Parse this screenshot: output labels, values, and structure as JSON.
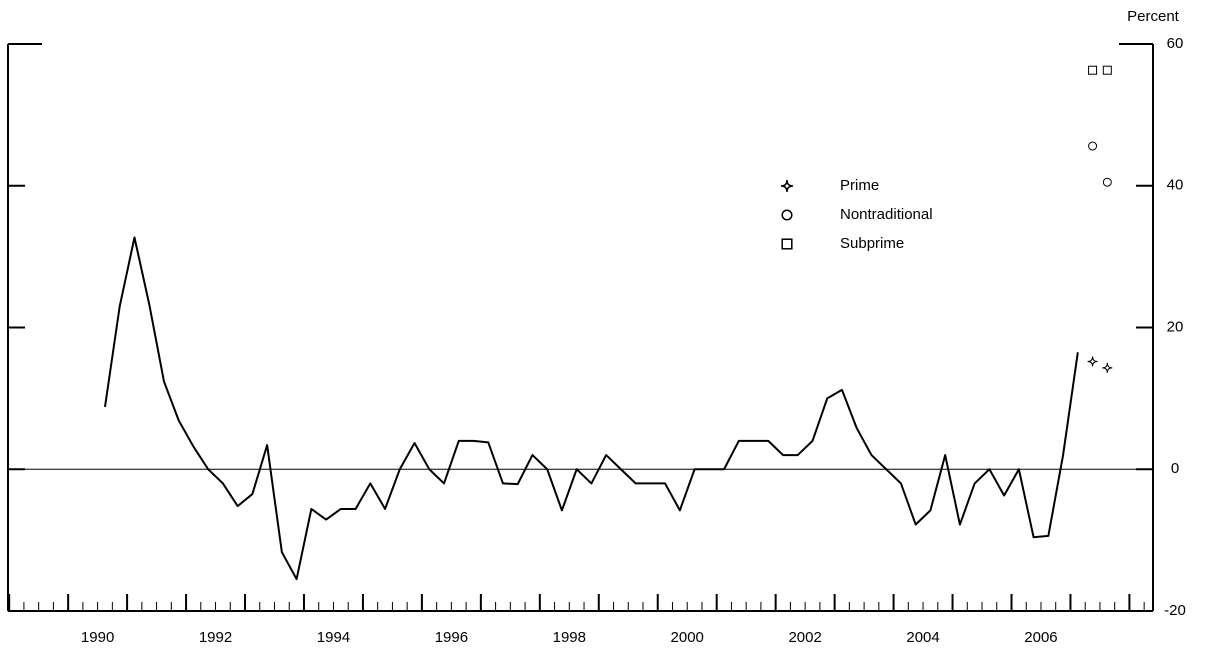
{
  "chart_data": {
    "type": "line",
    "y_axis_label": "Percent",
    "xlim": [
      1988.98,
      2008.4
    ],
    "xticks": [
      1990,
      1992,
      1994,
      1996,
      1998,
      2000,
      2002,
      2004,
      2006
    ],
    "ylim": [
      -20,
      60
    ],
    "yticks": [
      60,
      40,
      20,
      0,
      -20
    ],
    "zero_line": true,
    "legend_position": "upper right",
    "series": [
      {
        "color": "#000000",
        "marker": "none",
        "x": [
          1990.625,
          1990.875,
          1991.125,
          1991.375,
          1991.625,
          1991.875,
          1992.125,
          1992.375,
          1992.625,
          1992.875,
          1993.125,
          1993.375,
          1993.625,
          1993.875,
          1994.125,
          1994.375,
          1994.625,
          1994.875,
          1995.125,
          1995.375,
          1995.625,
          1995.875,
          1996.125,
          1996.375,
          1996.625,
          1996.875,
          1997.125,
          1997.375,
          1997.625,
          1997.875,
          1998.125,
          1998.375,
          1998.625,
          1998.875,
          1999.125,
          1999.375,
          1999.625,
          1999.875,
          2000.125,
          2000.375,
          2000.625,
          2000.875,
          2001.125,
          2001.375,
          2001.625,
          2001.875,
          2002.125,
          2002.375,
          2002.625,
          2002.875,
          2003.125,
          2003.375,
          2003.625,
          2003.875,
          2004.125,
          2004.375,
          2004.625,
          2004.875,
          2005.125,
          2005.375,
          2005.625,
          2005.875,
          2006.125,
          2006.375,
          2006.625,
          2006.875,
          2007.125
        ],
        "values": [
          8.8,
          23,
          32.7,
          23.3,
          12.4,
          6.9,
          3.2,
          0,
          -2,
          -5.2,
          -3.5,
          3.4,
          -11.7,
          -15.5,
          -5.6,
          -7.1,
          -5.6,
          -5.6,
          -2,
          -5.6,
          0,
          3.7,
          0,
          -2,
          4,
          4,
          3.8,
          -2,
          -2.1,
          2,
          0,
          -5.8,
          0,
          -2,
          2,
          0,
          -2,
          -2,
          -2,
          -5.8,
          0,
          0,
          0,
          4,
          4,
          4,
          2,
          2,
          4,
          10,
          11.2,
          5.8,
          2,
          0,
          -2,
          -7.8,
          -5.8,
          2,
          -7.8,
          -2,
          0,
          -3.7,
          0,
          -9.6,
          -9.4,
          2,
          16.5
        ]
      },
      {
        "name": "Prime",
        "color": "#000000",
        "marker": "diamond",
        "x": [
          2007.375,
          2007.625
        ],
        "values": [
          15.2,
          14.3
        ]
      },
      {
        "name": "Nontraditional",
        "color": "#000000",
        "marker": "circle",
        "x": [
          2007.375,
          2007.625
        ],
        "values": [
          45.6,
          40.5
        ]
      },
      {
        "name": "Subprime",
        "color": "#000000",
        "marker": "square",
        "x": [
          2007.375,
          2007.625
        ],
        "values": [
          56.3,
          56.3
        ]
      }
    ]
  }
}
